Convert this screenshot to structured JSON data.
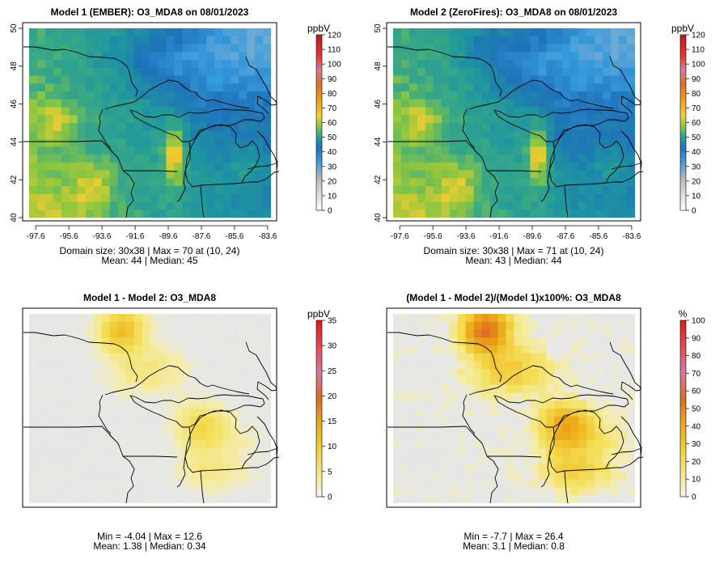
{
  "chart_data": [
    {
      "type": "heatmap",
      "title": "Model 1 (EMBER): O3_MDA8 on 08/01/2023",
      "colorbar_label": "ppbV",
      "colorbar_ticks": [
        "120",
        "110",
        "100",
        "90",
        "80",
        "70",
        "60",
        "50",
        "40",
        "30",
        "20",
        "10",
        "0"
      ],
      "xticks": [
        "-97.6",
        "-95.6",
        "-93.6",
        "-91.6",
        "-89.6",
        "-87.6",
        "-85.6",
        "-83.6"
      ],
      "yticks": [
        "50",
        "48",
        "46",
        "44",
        "42",
        "40"
      ],
      "xlim": [
        -98,
        -83.4
      ],
      "ylim": [
        40,
        50
      ],
      "stats_line1": "Domain size: 30x38 | Max = 70 at (10, 24)",
      "stats_line2": "Mean: 44 |  Median: 45",
      "max": 70,
      "mean": 44,
      "median": 45
    },
    {
      "type": "heatmap",
      "title": "Model 2 (ZeroFires): O3_MDA8 on 08/01/2023",
      "colorbar_label": "ppbV",
      "colorbar_ticks": [
        "120",
        "110",
        "100",
        "90",
        "80",
        "70",
        "60",
        "50",
        "40",
        "30",
        "20",
        "10",
        "0"
      ],
      "xticks": [
        "-97.6",
        "-95.6",
        "-93.6",
        "-91.6",
        "-89.6",
        "-87.6",
        "-85.6",
        "-83.6"
      ],
      "yticks": [
        "50",
        "48",
        "46",
        "44",
        "42",
        "40"
      ],
      "xlim": [
        -98,
        -83.4
      ],
      "ylim": [
        40,
        50
      ],
      "stats_line1": "Domain size: 30x38 | Max = 71 at (10, 24)",
      "stats_line2": "Mean: 43 |  Median: 44",
      "max": 71,
      "mean": 43,
      "median": 44
    },
    {
      "type": "heatmap",
      "title": "Model 1 - Model 2: O3_MDA8",
      "colorbar_label": "ppbV",
      "colorbar_ticks": [
        "35",
        "30",
        "25",
        "20",
        "15",
        "10",
        "5",
        "0"
      ],
      "stats_line1": "Min = -4.04 | Max = 12.6",
      "stats_line2": "Mean: 1.38 |  Median: 0.34",
      "min": -4.04,
      "max": 12.6,
      "mean": 1.38,
      "median": 0.34
    },
    {
      "type": "heatmap",
      "title": "(Model 1 - Model 2)/(Model 1)x100%: O3_MDA8",
      "colorbar_label": "%",
      "colorbar_ticks": [
        "100",
        "90",
        "80",
        "70",
        "60",
        "50",
        "40",
        "30",
        "20",
        "10",
        "0"
      ],
      "stats_line1": "Min = -7.7 | Max = 26.4",
      "stats_line2": "Mean: 3.1 |  Median: 0.8",
      "min": -7.7,
      "max": 26.4,
      "mean": 3.1,
      "median": 0.8
    }
  ]
}
